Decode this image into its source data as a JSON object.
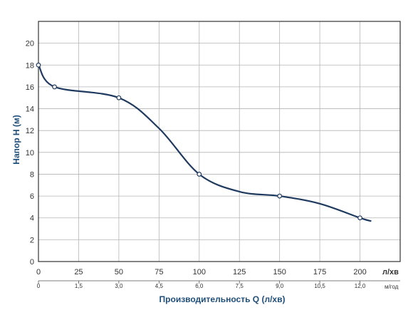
{
  "chart_data": {
    "type": "line",
    "title": "",
    "xlabel": "Производительность Q (л/хв)",
    "ylabel": "Напор H (м)",
    "x_unit": "л/хв",
    "x2_unit": "м/год",
    "xlim": [
      0,
      225
    ],
    "ylim": [
      0,
      22
    ],
    "x_ticks": [
      "0",
      "25",
      "50",
      "75",
      "100",
      "125",
      "150",
      "175",
      "200"
    ],
    "x2_ticks": [
      "0",
      "1,5",
      "3,0",
      "4,5",
      "6,0",
      "7,5",
      "9,0",
      "10,5",
      "12,0"
    ],
    "y_ticks": [
      "0",
      "2",
      "4",
      "6",
      "8",
      "10",
      "12",
      "14",
      "16",
      "18",
      "20"
    ],
    "grid": true,
    "series": [
      {
        "color": "#1f3a5f",
        "x": [
          0,
          10,
          50,
          75,
          100,
          125,
          150,
          175,
          200,
          207
        ],
        "y": [
          18,
          16,
          15,
          12.2,
          8,
          6.4,
          6,
          5.3,
          4,
          3.7
        ],
        "marker_x": [
          0,
          10,
          50,
          100,
          150,
          200
        ],
        "marker_y": [
          18,
          16,
          15,
          8,
          6,
          4
        ]
      }
    ]
  }
}
